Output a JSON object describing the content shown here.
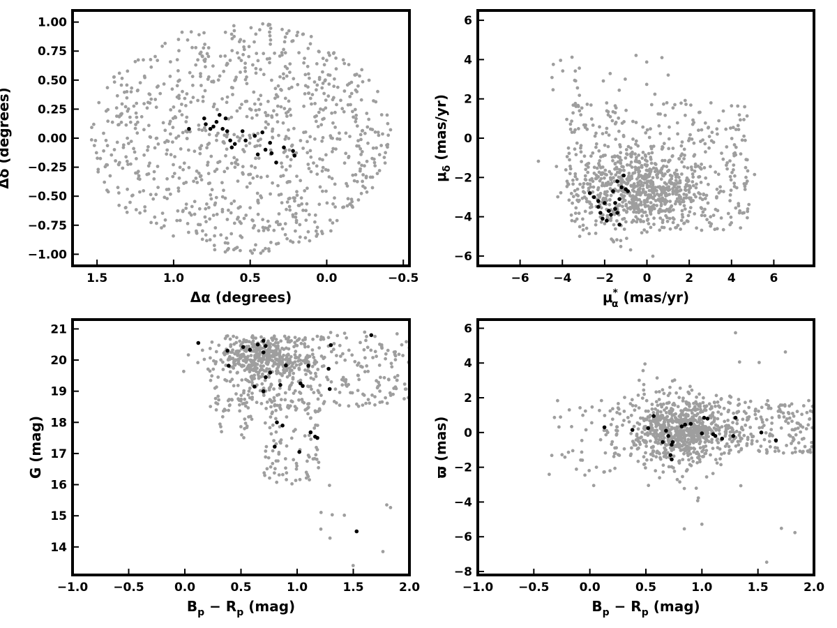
{
  "colors": {
    "field": "#9e9e9e",
    "members": "#000000",
    "frame": "#000000",
    "background": "#ffffff"
  },
  "chart_data": [
    {
      "id": "panel-sky",
      "type": "scatter",
      "title": "",
      "xlabel": "Δα (degrees)",
      "ylabel": "Δδ (degrees)",
      "xlim": [
        1.66,
        -0.54
      ],
      "ylim": [
        -1.1,
        1.1
      ],
      "x_inverted": true,
      "xticks": [
        1.5,
        1.0,
        0.5,
        0.0,
        -0.5
      ],
      "xtick_labels": [
        "1.5",
        "1.0",
        "0.5",
        "0.0",
        "−0.5"
      ],
      "yticks": [
        -1.0,
        -0.75,
        -0.5,
        -0.25,
        0.0,
        0.25,
        0.5,
        0.75,
        1.0
      ],
      "ytick_labels": [
        "−1.00",
        "−0.75",
        "−0.50",
        "−0.25",
        "0.00",
        "0.25",
        "0.50",
        "0.75",
        "1.00"
      ],
      "grid": false,
      "field_cloud": {
        "shape": "disk",
        "n": 950,
        "cx": 0.56,
        "cy": 0.0,
        "rx": 0.98,
        "ry": 1.0,
        "seed": 11
      },
      "members": {
        "x": [
          0.9,
          0.8,
          0.79,
          0.76,
          0.74,
          0.72,
          0.7,
          0.68,
          0.66,
          0.65,
          0.63,
          0.62,
          0.6,
          0.55,
          0.53,
          0.47,
          0.45,
          0.42,
          0.4,
          0.37,
          0.36,
          0.33,
          0.28,
          0.22,
          0.21
        ],
        "y": [
          0.08,
          0.17,
          0.12,
          0.08,
          0.1,
          0.14,
          0.2,
          0.08,
          0.17,
          0.06,
          -0.02,
          -0.08,
          -0.05,
          0.06,
          -0.02,
          0.02,
          -0.14,
          0.05,
          -0.1,
          -0.04,
          -0.13,
          -0.21,
          -0.08,
          -0.11,
          -0.15
        ]
      }
    },
    {
      "id": "panel-pm",
      "type": "scatter",
      "title": "",
      "xlabel_main": "μ",
      "xlabel_sub": "α",
      "xlabel_sup": "*",
      "xlabel_rest": " (mas/yr)",
      "ylabel_main": "μ",
      "ylabel_sub": "δ",
      "ylabel_rest": " (mas/yr)",
      "xlim": [
        -8.0,
        7.9
      ],
      "ylim": [
        -6.5,
        6.5
      ],
      "xticks": [
        -6,
        -4,
        -2,
        0,
        2,
        4,
        6
      ],
      "xtick_labels": [
        "−6",
        "−4",
        "−2",
        "0",
        "2",
        "4",
        "6"
      ],
      "yticks": [
        -6,
        -4,
        -2,
        0,
        2,
        4,
        6
      ],
      "ytick_labels": [
        "−6",
        "−4",
        "−2",
        "0",
        "2",
        "4",
        "6"
      ],
      "grid": false,
      "field_cloud": [
        {
          "shape": "gauss",
          "n": 650,
          "cx": -0.2,
          "cy": -2.6,
          "sx": 1.6,
          "sy": 1.0,
          "seed": 21
        },
        {
          "shape": "uniform",
          "n": 380,
          "xr": [
            -3.8,
            4.8
          ],
          "yr": [
            -4.7,
            1.8
          ],
          "seed": 22
        },
        {
          "shape": "uniform",
          "n": 25,
          "xr": [
            -5.0,
            2.0
          ],
          "yr": [
            1.5,
            4.4
          ],
          "seed": 23
        }
      ],
      "members": {
        "x": [
          -2.7,
          -2.3,
          -2.3,
          -2.2,
          -2.1,
          -2.0,
          -1.9,
          -1.8,
          -1.7,
          -1.6,
          -1.5,
          -1.5,
          -1.4,
          -1.4,
          -1.3,
          -1.2,
          -1.1,
          -1.0,
          -0.9,
          -2.5,
          -1.8,
          -1.3
        ],
        "y": [
          -2.8,
          -3.2,
          -3.5,
          -3.8,
          -4.1,
          -3.3,
          -4.2,
          -3.7,
          -3.9,
          -2.7,
          -3.6,
          -3.3,
          -3.8,
          -2.2,
          -4.4,
          -2.5,
          -1.9,
          -2.6,
          -2.7,
          -3.0,
          -3.7,
          -3.1
        ]
      }
    },
    {
      "id": "panel-cmd",
      "type": "scatter",
      "title": "",
      "xlabel_main": "B",
      "xlabel_sub1": "p",
      "xlabel_mid": " − R",
      "xlabel_sub2": "p",
      "xlabel_rest": " (mag)",
      "ylabel": "G (mag)",
      "xlim": [
        -1.0,
        2.0
      ],
      "ylim": [
        13.1,
        21.3
      ],
      "yticks": [
        14,
        15,
        16,
        17,
        18,
        19,
        20,
        21
      ],
      "ytick_labels": [
        "14",
        "15",
        "16",
        "17",
        "18",
        "19",
        "20",
        "21"
      ],
      "xticks": [
        -1.0,
        -0.5,
        0.0,
        0.5,
        1.0,
        1.5,
        2.0
      ],
      "xtick_labels": [
        "−1.0",
        "−0.5",
        "0.0",
        "0.5",
        "1.0",
        "1.5",
        "2.0"
      ],
      "grid": false,
      "field_cloud": [
        {
          "shape": "gauss",
          "n": 420,
          "cx": 0.72,
          "cy": 20.05,
          "sx": 0.2,
          "sy": 0.38,
          "ymax": 20.8,
          "seed": 31
        },
        {
          "shape": "uniform",
          "n": 170,
          "xr": [
            0.22,
            1.25
          ],
          "yr": [
            18.3,
            20.8
          ],
          "seed": 32
        },
        {
          "shape": "uniform",
          "n": 95,
          "xr": [
            0.7,
            1.22
          ],
          "yr": [
            16.0,
            18.8
          ],
          "seed": 33
        },
        {
          "shape": "uniform",
          "n": 130,
          "xr": [
            1.2,
            2.0
          ],
          "yr": [
            18.5,
            20.9
          ],
          "seed": 34
        },
        {
          "shape": "uniform",
          "n": 35,
          "xr": [
            0.25,
            0.6
          ],
          "yr": [
            17.5,
            19.0
          ],
          "seed": 35
        },
        {
          "shape": "uniform",
          "n": 10,
          "xr": [
            1.1,
            1.95
          ],
          "yr": [
            13.4,
            16.4
          ],
          "seed": 36
        }
      ],
      "members": {
        "x": [
          0.12,
          0.38,
          0.39,
          0.52,
          0.58,
          0.62,
          0.65,
          0.7,
          0.7,
          0.7,
          0.72,
          0.72,
          0.8,
          0.85,
          0.87,
          0.9,
          1.02,
          1.03,
          1.05,
          1.1,
          1.12,
          1.16,
          1.28,
          1.29,
          1.3,
          1.53,
          1.66,
          1.18,
          0.82,
          0.76
        ],
        "y": [
          20.55,
          20.3,
          19.82,
          20.42,
          20.33,
          19.15,
          20.5,
          19.0,
          20.25,
          20.62,
          20.45,
          19.45,
          17.22,
          19.2,
          17.9,
          19.83,
          17.05,
          19.25,
          19.17,
          19.82,
          17.68,
          17.54,
          19.72,
          19.07,
          20.48,
          14.5,
          20.8,
          17.5,
          18.0,
          19.6
        ]
      }
    },
    {
      "id": "panel-parallax",
      "type": "scatter",
      "title": "",
      "xlabel_main": "B",
      "xlabel_sub1": "p",
      "xlabel_mid": " − R",
      "xlabel_sub2": "p",
      "xlabel_rest": " (mag)",
      "ylabel": "ϖ (mas)",
      "xlim": [
        -1.0,
        2.0
      ],
      "ylim": [
        -8.2,
        6.5
      ],
      "xticks": [
        -1.0,
        -0.5,
        0.0,
        0.5,
        1.0,
        1.5,
        2.0
      ],
      "xtick_labels": [
        "−1.0",
        "−0.5",
        "0.0",
        "0.5",
        "1.0",
        "1.5",
        "2.0"
      ],
      "yticks": [
        -8,
        -6,
        -4,
        -2,
        0,
        2,
        4,
        6
      ],
      "ytick_labels": [
        "−8",
        "−6",
        "−4",
        "−2",
        "0",
        "2",
        "4",
        "6"
      ],
      "grid": false,
      "field_cloud": [
        {
          "shape": "gauss",
          "n": 620,
          "cx": 0.82,
          "cy": 0.2,
          "sx": 0.22,
          "sy": 0.9,
          "seed": 41
        },
        {
          "shape": "gauss",
          "n": 180,
          "cx": 0.65,
          "cy": 0.0,
          "sx": 0.35,
          "sy": 1.6,
          "seed": 42
        },
        {
          "shape": "uniform",
          "n": 170,
          "xr": [
            1.2,
            2.0
          ],
          "yr": [
            -1.2,
            1.9
          ],
          "seed": 43
        },
        {
          "shape": "uniform",
          "n": 30,
          "xr": [
            -0.4,
            0.3
          ],
          "yr": [
            -2.5,
            1.5
          ],
          "seed": 44
        },
        {
          "shape": "uniform",
          "n": 18,
          "xr": [
            0.4,
            1.9
          ],
          "yr": [
            -7.5,
            5.8
          ],
          "seed": 45
        }
      ],
      "members": {
        "x": [
          0.13,
          0.38,
          0.52,
          0.57,
          0.65,
          0.7,
          0.72,
          0.73,
          0.74,
          0.82,
          0.85,
          0.9,
          1.0,
          1.02,
          1.05,
          1.1,
          1.12,
          1.18,
          1.28,
          1.3,
          1.53,
          1.66,
          0.73,
          0.68
        ],
        "y": [
          0.3,
          0.15,
          0.25,
          0.95,
          -0.55,
          -0.2,
          -1.3,
          -1.55,
          -0.55,
          0.35,
          0.45,
          0.5,
          -0.05,
          0.85,
          0.8,
          -0.1,
          -0.2,
          -0.35,
          -0.2,
          0.85,
          0.0,
          -0.45,
          -0.7,
          0.1
        ]
      }
    }
  ]
}
